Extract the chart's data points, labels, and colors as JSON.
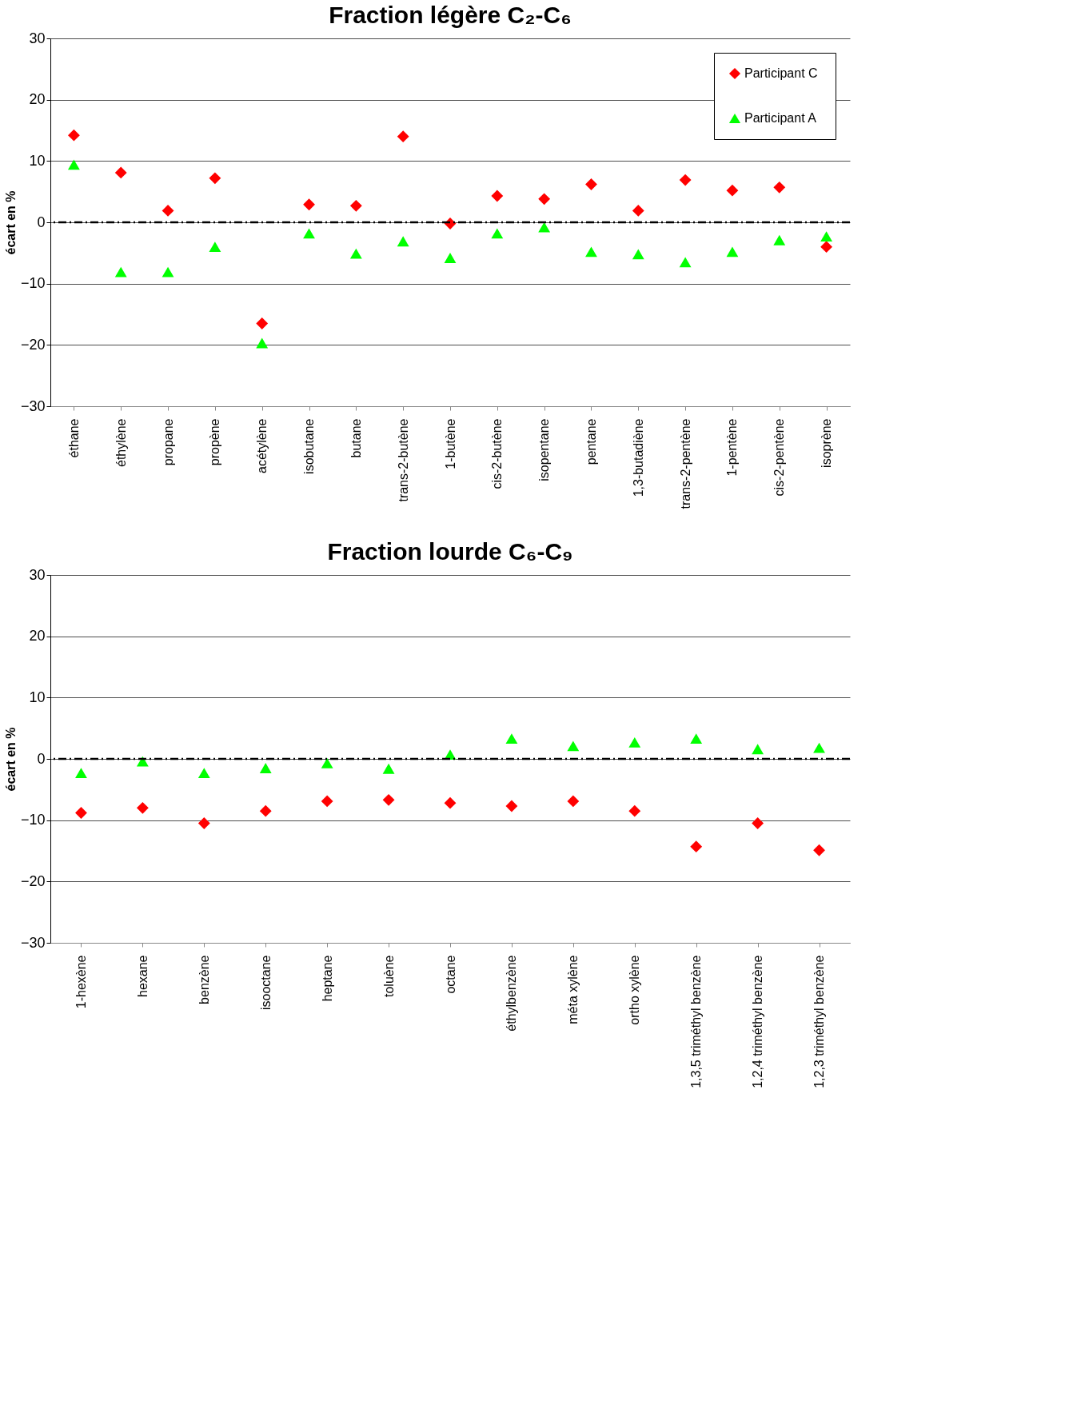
{
  "chart_data": [
    {
      "type": "scatter",
      "title": "Fraction légère C₂-C₆",
      "ylabel": "écart en %",
      "categories": [
        "éthane",
        "éthylène",
        "propane",
        "propène",
        "acétylène",
        "isobutane",
        "butane",
        "trans-2-butène",
        "1-butène",
        "cis-2-butène",
        "isopentane",
        "pentane",
        "1,3-butadiène",
        "trans-2-pentène",
        "1-pentène",
        "cis-2-pentène",
        "isoprène"
      ],
      "series": [
        {
          "name": "Participant C",
          "color": "#ff0000",
          "marker": "diamond",
          "values": [
            14.2,
            8.1,
            1.9,
            7.2,
            -16.5,
            2.9,
            2.7,
            14.0,
            -0.2,
            4.3,
            3.8,
            6.2,
            1.9,
            6.9,
            5.2,
            5.7,
            -4.0
          ]
        },
        {
          "name": "Participant  A",
          "color": "#00ff00",
          "marker": "triangle",
          "values": [
            9.4,
            -8.1,
            -8.1,
            -4.0,
            -19.7,
            -1.8,
            -5.1,
            -3.1,
            -5.8,
            -1.8,
            -0.8,
            -4.8,
            -5.2,
            -6.5,
            -4.8,
            -2.9,
            -2.3
          ]
        }
      ],
      "ylim": [
        -30,
        30
      ],
      "yticks": [
        -30,
        -20,
        -10,
        0,
        10,
        20,
        30
      ],
      "grid": "y",
      "legend": "top right",
      "ref_lines": [
        {
          "axis": "y",
          "value": 0,
          "color": "#000000",
          "line_style": "dashdot"
        }
      ]
    },
    {
      "type": "scatter",
      "title": "Fraction lourde C₆-C₉",
      "ylabel": "écart en %",
      "categories": [
        "1-hexène",
        "hexane",
        "benzène",
        "isooctane",
        "heptane",
        "toluène",
        "octane",
        "éthylbenzène",
        "méta xylène",
        "ortho xylène",
        "1,3,5  triméthyl benzène",
        "1,2,4  triméthyl benzène",
        "1,2,3  triméthyl benzène"
      ],
      "series": [
        {
          "color": "#ff0000",
          "marker": "diamond",
          "values": [
            -8.8,
            -8.0,
            -10.5,
            -8.5,
            -6.9,
            -6.7,
            -7.2,
            -7.7,
            -6.9,
            -8.5,
            -14.3,
            -10.5,
            -14.9
          ]
        },
        {
          "color": "#00ff00",
          "marker": "triangle",
          "values": [
            -2.3,
            -0.4,
            -2.3,
            -1.5,
            -0.7,
            -1.6,
            0.7,
            3.3,
            2.1,
            2.7,
            3.3,
            1.6,
            1.8
          ]
        }
      ],
      "ylim": [
        -30,
        30
      ],
      "yticks": [
        -30,
        -20,
        -10,
        0,
        10,
        20,
        30
      ],
      "grid": "y",
      "legend": false,
      "ref_lines": [
        {
          "axis": "y",
          "value": 0,
          "color": "#000000",
          "line_style": "dashdot"
        }
      ]
    }
  ]
}
